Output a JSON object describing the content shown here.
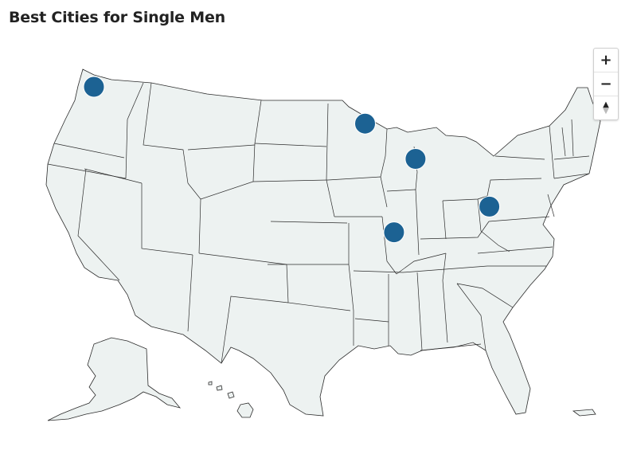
{
  "title": "Best Cities for Single Men",
  "map": {
    "land_color": "#edf2f1",
    "border_color": "#2b2b2b",
    "marker_color": "#1c6293"
  },
  "markers": [
    {
      "lon": -122.3,
      "lat": 47.6
    },
    {
      "lon": -93.3,
      "lat": 44.98
    },
    {
      "lon": -87.9,
      "lat": 43.04
    },
    {
      "lon": -90.2,
      "lat": 38.63
    },
    {
      "lon": -80.0,
      "lat": 40.44
    }
  ],
  "controls": {
    "zoom_in": "+",
    "zoom_out": "−",
    "reset_icon": "compass-icon"
  }
}
